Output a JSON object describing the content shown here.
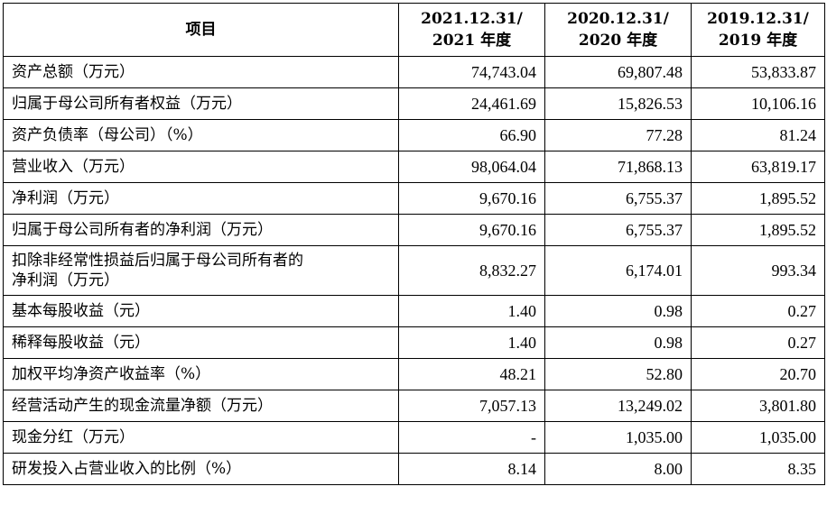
{
  "header": {
    "item": "项目",
    "col1": [
      "2021.12.31/",
      "2021 年度"
    ],
    "col2": [
      "2020.12.31/",
      "2020 年度"
    ],
    "col3": [
      "2019.12.31/",
      "2019 年度"
    ]
  },
  "rows": [
    {
      "label": [
        "资产总额（万元）"
      ],
      "v2021": "74,743.04",
      "v2020": "69,807.48",
      "v2019": "53,833.87"
    },
    {
      "label": [
        "归属于母公司所有者权益（万元）"
      ],
      "v2021": "24,461.69",
      "v2020": "15,826.53",
      "v2019": "10,106.16"
    },
    {
      "label": [
        "资产负债率（母公司）（%）"
      ],
      "v2021": "66.90",
      "v2020": "77.28",
      "v2019": "81.24"
    },
    {
      "label": [
        "营业收入（万元）"
      ],
      "v2021": "98,064.04",
      "v2020": "71,868.13",
      "v2019": "63,819.17"
    },
    {
      "label": [
        "净利润（万元）"
      ],
      "v2021": "9,670.16",
      "v2020": "6,755.37",
      "v2019": "1,895.52"
    },
    {
      "label": [
        "归属于母公司所有者的净利润（万元）"
      ],
      "v2021": "9,670.16",
      "v2020": "6,755.37",
      "v2019": "1,895.52"
    },
    {
      "label": [
        "扣除非经常性损益后归属于母公司所有者的",
        "净利润（万元）"
      ],
      "v2021": "8,832.27",
      "v2020": "6,174.01",
      "v2019": "993.34"
    },
    {
      "label": [
        "基本每股收益（元）"
      ],
      "v2021": "1.40",
      "v2020": "0.98",
      "v2019": "0.27"
    },
    {
      "label": [
        "稀释每股收益（元）"
      ],
      "v2021": "1.40",
      "v2020": "0.98",
      "v2019": "0.27"
    },
    {
      "label": [
        "加权平均净资产收益率（%）"
      ],
      "v2021": "48.21",
      "v2020": "52.80",
      "v2019": "20.70"
    },
    {
      "label": [
        "经营活动产生的现金流量净额（万元）"
      ],
      "v2021": "7,057.13",
      "v2020": "13,249.02",
      "v2019": "3,801.80"
    },
    {
      "label": [
        "现金分红（万元）"
      ],
      "v2021": "-",
      "v2020": "1,035.00",
      "v2019": "1,035.00"
    },
    {
      "label": [
        "研发投入占营业收入的比例（%）"
      ],
      "v2021": "8.14",
      "v2020": "8.00",
      "v2019": "8.35"
    }
  ]
}
